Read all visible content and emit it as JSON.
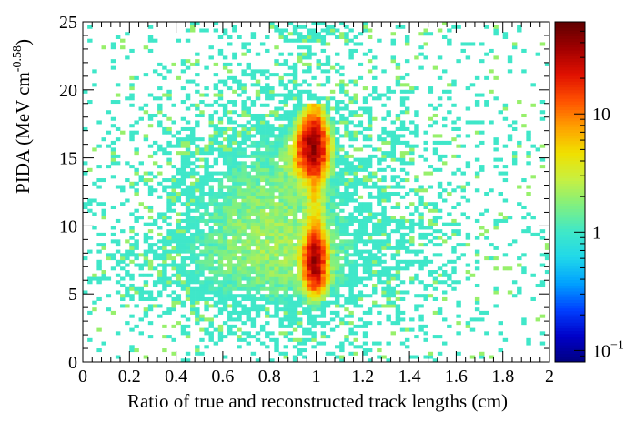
{
  "chart_data": {
    "type": "heatmap",
    "xlabel": "Ratio of true and reconstructed track lengths (cm)",
    "ylabel": "PIDA (MeV cm",
    "ylabel_exp": "-0.58",
    "ylabel_close": ")",
    "xlim": [
      0,
      2
    ],
    "ylim": [
      0,
      25
    ],
    "x_ticks": [
      "0",
      "0.2",
      "0.4",
      "0.6",
      "0.8",
      "1",
      "1.2",
      "1.4",
      "1.6",
      "1.8",
      "2"
    ],
    "y_ticks": [
      "0",
      "5",
      "10",
      "15",
      "20",
      "25"
    ],
    "bins": {
      "x": 100,
      "y": 100
    },
    "colorbar": {
      "scale": "log",
      "range": [
        0.08,
        60
      ],
      "ticks": [
        {
          "value": 0.1,
          "base": "10",
          "exp": "−1"
        },
        {
          "value": 1,
          "base": "1",
          "exp": ""
        },
        {
          "value": 10,
          "base": "10",
          "exp": ""
        }
      ]
    },
    "features": [
      {
        "name": "vertical band at ratio 1",
        "x": 1.0,
        "y_range": [
          5.5,
          19
        ],
        "peak_counts": 40
      },
      {
        "name": "proton cluster",
        "x": 0.98,
        "y": 16,
        "peak_counts": 40
      },
      {
        "name": "lower-PIDA cluster",
        "x": 0.99,
        "y": 7.5,
        "peak_counts": 30
      },
      {
        "name": "diffuse background",
        "x_range": [
          0.05,
          1.95
        ],
        "y_range": [
          0.5,
          25
        ],
        "typical_counts": 1
      }
    ],
    "colormap": [
      "#000080",
      "#0000c8",
      "#0040ff",
      "#00a0ff",
      "#20d8ea",
      "#40e8c8",
      "#80f080",
      "#c8f040",
      "#f0e000",
      "#ffa000",
      "#ff5000",
      "#e01000",
      "#a00000",
      "#600000"
    ]
  }
}
